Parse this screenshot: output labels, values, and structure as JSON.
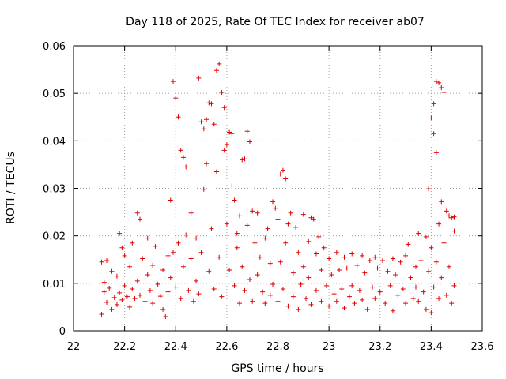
{
  "chart_data": {
    "type": "scatter",
    "title": "Day 118 of 2025, Rate Of TEC Index for receiver ab07",
    "xlabel": "GPS time / hours",
    "ylabel": "ROTI / TECUs",
    "xlim": [
      22,
      23.6
    ],
    "ylim": [
      0,
      0.06
    ],
    "xticks": [
      22,
      22.2,
      22.4,
      22.6,
      22.8,
      23,
      23.2,
      23.4,
      23.6
    ],
    "xtick_labels": [
      "22",
      "22.2",
      "22.4",
      "22.6",
      "22.8",
      "23",
      "23.2",
      "23.4",
      "23.6"
    ],
    "yticks": [
      0,
      0.01,
      0.02,
      0.03,
      0.04,
      0.05,
      0.06
    ],
    "ytick_labels": [
      "0",
      "0.01",
      "0.02",
      "0.03",
      "0.04",
      "0.05",
      "0.06"
    ],
    "grid": true,
    "marker": "+",
    "color": "#e00000",
    "series": [
      {
        "name": "ROTI",
        "points": [
          [
            22.11,
            0.0035
          ],
          [
            22.11,
            0.0145
          ],
          [
            22.12,
            0.0082
          ],
          [
            22.12,
            0.0102
          ],
          [
            22.13,
            0.0148
          ],
          [
            22.13,
            0.006
          ],
          [
            22.14,
            0.009
          ],
          [
            22.15,
            0.0045
          ],
          [
            22.15,
            0.0125
          ],
          [
            22.16,
            0.007
          ],
          [
            22.17,
            0.0115
          ],
          [
            22.17,
            0.0055
          ],
          [
            22.18,
            0.008
          ],
          [
            22.18,
            0.0205
          ],
          [
            22.19,
            0.0175
          ],
          [
            22.19,
            0.0065
          ],
          [
            22.2,
            0.0158
          ],
          [
            22.2,
            0.0095
          ],
          [
            22.21,
            0.0072
          ],
          [
            22.22,
            0.0135
          ],
          [
            22.22,
            0.005
          ],
          [
            22.23,
            0.0185
          ],
          [
            22.23,
            0.0088
          ],
          [
            22.24,
            0.0068
          ],
          [
            22.25,
            0.0248
          ],
          [
            22.25,
            0.0105
          ],
          [
            22.26,
            0.0235
          ],
          [
            22.26,
            0.0075
          ],
          [
            22.27,
            0.0152
          ],
          [
            22.28,
            0.0062
          ],
          [
            22.29,
            0.0195
          ],
          [
            22.29,
            0.0118
          ],
          [
            22.3,
            0.0085
          ],
          [
            22.31,
            0.0138
          ],
          [
            22.31,
            0.0058
          ],
          [
            22.32,
            0.0178
          ],
          [
            22.33,
            0.0098
          ],
          [
            22.34,
            0.0073
          ],
          [
            22.35,
            0.0128
          ],
          [
            22.35,
            0.0045
          ],
          [
            22.36,
            0.003
          ],
          [
            22.37,
            0.0158
          ],
          [
            22.37,
            0.0082
          ],
          [
            22.38,
            0.0275
          ],
          [
            22.38,
            0.0112
          ],
          [
            22.39,
            0.0525
          ],
          [
            22.39,
            0.0165
          ],
          [
            22.4,
            0.049
          ],
          [
            22.4,
            0.0092
          ],
          [
            22.41,
            0.045
          ],
          [
            22.41,
            0.0185
          ],
          [
            22.42,
            0.038
          ],
          [
            22.42,
            0.0068
          ],
          [
            22.43,
            0.0365
          ],
          [
            22.43,
            0.0135
          ],
          [
            22.44,
            0.0345
          ],
          [
            22.44,
            0.0202
          ],
          [
            22.45,
            0.0085
          ],
          [
            22.46,
            0.0248
          ],
          [
            22.46,
            0.0152
          ],
          [
            22.47,
            0.0062
          ],
          [
            22.48,
            0.0195
          ],
          [
            22.48,
            0.0105
          ],
          [
            22.49,
            0.0532
          ],
          [
            22.49,
            0.0078
          ],
          [
            22.5,
            0.044
          ],
          [
            22.5,
            0.0165
          ],
          [
            22.51,
            0.0425
          ],
          [
            22.51,
            0.0298
          ],
          [
            22.52,
            0.0445
          ],
          [
            22.52,
            0.0352
          ],
          [
            22.53,
            0.048
          ],
          [
            22.53,
            0.0125
          ],
          [
            22.54,
            0.0478
          ],
          [
            22.54,
            0.0215
          ],
          [
            22.55,
            0.0435
          ],
          [
            22.55,
            0.0088
          ],
          [
            22.56,
            0.0548
          ],
          [
            22.56,
            0.0335
          ],
          [
            22.57,
            0.0562
          ],
          [
            22.57,
            0.0155
          ],
          [
            22.58,
            0.0502
          ],
          [
            22.58,
            0.0072
          ],
          [
            22.59,
            0.047
          ],
          [
            22.59,
            0.038
          ],
          [
            22.6,
            0.0392
          ],
          [
            22.6,
            0.0225
          ],
          [
            22.61,
            0.0418
          ],
          [
            22.61,
            0.0128
          ],
          [
            22.62,
            0.0415
          ],
          [
            22.62,
            0.0305
          ],
          [
            22.63,
            0.0275
          ],
          [
            22.63,
            0.0095
          ],
          [
            22.64,
            0.0205
          ],
          [
            22.64,
            0.0175
          ],
          [
            22.65,
            0.0242
          ],
          [
            22.65,
            0.0058
          ],
          [
            22.66,
            0.036
          ],
          [
            22.66,
            0.0135
          ],
          [
            22.67,
            0.0362
          ],
          [
            22.67,
            0.0085
          ],
          [
            22.68,
            0.042
          ],
          [
            22.68,
            0.0222
          ],
          [
            22.69,
            0.0398
          ],
          [
            22.69,
            0.0108
          ],
          [
            22.7,
            0.0252
          ],
          [
            22.7,
            0.0062
          ],
          [
            22.71,
            0.0185
          ],
          [
            22.72,
            0.0248
          ],
          [
            22.72,
            0.0118
          ],
          [
            22.73,
            0.0155
          ],
          [
            22.74,
            0.0082
          ],
          [
            22.75,
            0.0195
          ],
          [
            22.75,
            0.0058
          ],
          [
            22.76,
            0.0215
          ],
          [
            22.77,
            0.0142
          ],
          [
            22.77,
            0.0075
          ],
          [
            22.78,
            0.0272
          ],
          [
            22.78,
            0.0098
          ],
          [
            22.79,
            0.0258
          ],
          [
            22.8,
            0.0235
          ],
          [
            22.8,
            0.0062
          ],
          [
            22.81,
            0.033
          ],
          [
            22.81,
            0.0145
          ],
          [
            22.82,
            0.0338
          ],
          [
            22.82,
            0.0088
          ],
          [
            22.83,
            0.032
          ],
          [
            22.83,
            0.0185
          ],
          [
            22.84,
            0.0225
          ],
          [
            22.84,
            0.0052
          ],
          [
            22.85,
            0.0248
          ],
          [
            22.86,
            0.0122
          ],
          [
            22.86,
            0.0072
          ],
          [
            22.87,
            0.0218
          ],
          [
            22.88,
            0.0165
          ],
          [
            22.88,
            0.0045
          ],
          [
            22.89,
            0.0098
          ],
          [
            22.9,
            0.0245
          ],
          [
            22.9,
            0.0135
          ],
          [
            22.91,
            0.0068
          ],
          [
            22.92,
            0.0188
          ],
          [
            22.92,
            0.0112
          ],
          [
            22.93,
            0.0238
          ],
          [
            22.93,
            0.0055
          ],
          [
            22.94,
            0.0235
          ],
          [
            22.95,
            0.0162
          ],
          [
            22.95,
            0.0085
          ],
          [
            22.96,
            0.0198
          ],
          [
            22.97,
            0.0128
          ],
          [
            22.97,
            0.0062
          ],
          [
            22.98,
            0.0175
          ],
          [
            22.99,
            0.0095
          ],
          [
            23.0,
            0.0152
          ],
          [
            23.0,
            0.0052
          ],
          [
            23.01,
            0.0118
          ],
          [
            23.02,
            0.0078
          ],
          [
            23.03,
            0.0165
          ],
          [
            23.03,
            0.0062
          ],
          [
            23.04,
            0.0128
          ],
          [
            23.05,
            0.0088
          ],
          [
            23.06,
            0.0155
          ],
          [
            23.06,
            0.0048
          ],
          [
            23.07,
            0.0132
          ],
          [
            23.08,
            0.0072
          ],
          [
            23.09,
            0.0162
          ],
          [
            23.09,
            0.0095
          ],
          [
            23.1,
            0.0058
          ],
          [
            23.11,
            0.0138
          ],
          [
            23.12,
            0.0085
          ],
          [
            23.13,
            0.0158
          ],
          [
            23.13,
            0.0065
          ],
          [
            23.14,
            0.0122
          ],
          [
            23.15,
            0.0045
          ],
          [
            23.16,
            0.0148
          ],
          [
            23.17,
            0.0092
          ],
          [
            23.18,
            0.0155
          ],
          [
            23.18,
            0.0068
          ],
          [
            23.19,
            0.0132
          ],
          [
            23.2,
            0.0082
          ],
          [
            23.21,
            0.0148
          ],
          [
            23.22,
            0.0058
          ],
          [
            23.23,
            0.0125
          ],
          [
            23.24,
            0.0095
          ],
          [
            23.25,
            0.0152
          ],
          [
            23.25,
            0.0042
          ],
          [
            23.26,
            0.0118
          ],
          [
            23.27,
            0.0075
          ],
          [
            23.28,
            0.0145
          ],
          [
            23.29,
            0.0088
          ],
          [
            23.3,
            0.0158
          ],
          [
            23.3,
            0.0058
          ],
          [
            23.31,
            0.0182
          ],
          [
            23.32,
            0.0112
          ],
          [
            23.33,
            0.0068
          ],
          [
            23.34,
            0.0135
          ],
          [
            23.34,
            0.0092
          ],
          [
            23.35,
            0.0205
          ],
          [
            23.35,
            0.0062
          ],
          [
            23.36,
            0.0148
          ],
          [
            23.37,
            0.0082
          ],
          [
            23.38,
            0.0198
          ],
          [
            23.38,
            0.0045
          ],
          [
            23.39,
            0.0299
          ],
          [
            23.39,
            0.0125
          ],
          [
            23.4,
            0.0448
          ],
          [
            23.4,
            0.0175
          ],
          [
            23.4,
            0.0038
          ],
          [
            23.41,
            0.0478
          ],
          [
            23.41,
            0.0092
          ],
          [
            23.41,
            0.0415
          ],
          [
            23.42,
            0.0525
          ],
          [
            23.42,
            0.0375
          ],
          [
            23.42,
            0.0145
          ],
          [
            23.43,
            0.0522
          ],
          [
            23.43,
            0.0225
          ],
          [
            23.43,
            0.0068
          ],
          [
            23.44,
            0.0512
          ],
          [
            23.44,
            0.0272
          ],
          [
            23.44,
            0.0112
          ],
          [
            23.45,
            0.0502
          ],
          [
            23.45,
            0.0265
          ],
          [
            23.45,
            0.0185
          ],
          [
            23.46,
            0.0252
          ],
          [
            23.46,
            0.0075
          ],
          [
            23.47,
            0.0242
          ],
          [
            23.47,
            0.0135
          ],
          [
            23.48,
            0.0238
          ],
          [
            23.48,
            0.0058
          ],
          [
            23.49,
            0.024
          ],
          [
            23.49,
            0.021
          ],
          [
            23.49,
            0.0095
          ]
        ]
      }
    ]
  }
}
